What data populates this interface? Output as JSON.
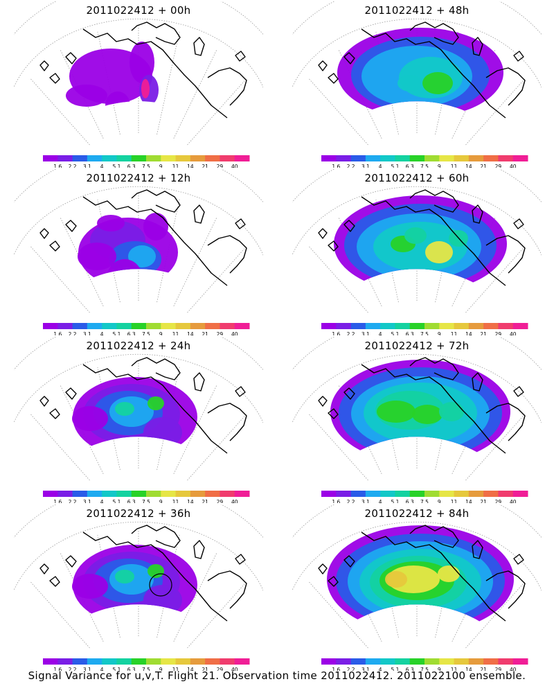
{
  "figure": {
    "caption": "Signal Variance for u,v,T. Flight 21. Observation time 2011022412. 2011022100 ensemble."
  },
  "colorbar": {
    "colors": [
      "#9b00e6",
      "#7a1ee6",
      "#2a5be8",
      "#1eaaf0",
      "#12c8c8",
      "#14d2a0",
      "#28d228",
      "#a0dc32",
      "#e6e646",
      "#e6c83c",
      "#e69b3c",
      "#f06e46",
      "#f03c6e",
      "#f01e96"
    ],
    "tick_labels": [
      "1.6",
      "2.2",
      "3.1",
      "4",
      "5.1",
      "6.3",
      "7.5",
      "9",
      "11",
      "14",
      "21",
      "29",
      "40"
    ]
  },
  "panels": [
    {
      "title": "2011022412 + 00h",
      "level": 0
    },
    {
      "title": "2011022412 + 48h",
      "level": 3
    },
    {
      "title": "2011022412 + 12h",
      "level": 1
    },
    {
      "title": "2011022412 + 60h",
      "level": 4
    },
    {
      "title": "2011022412 + 24h",
      "level": 2
    },
    {
      "title": "2011022412 + 72h",
      "level": 5
    },
    {
      "title": "2011022412 + 36h",
      "level": 2
    },
    {
      "title": "2011022412 + 84h",
      "level": 6
    }
  ]
}
